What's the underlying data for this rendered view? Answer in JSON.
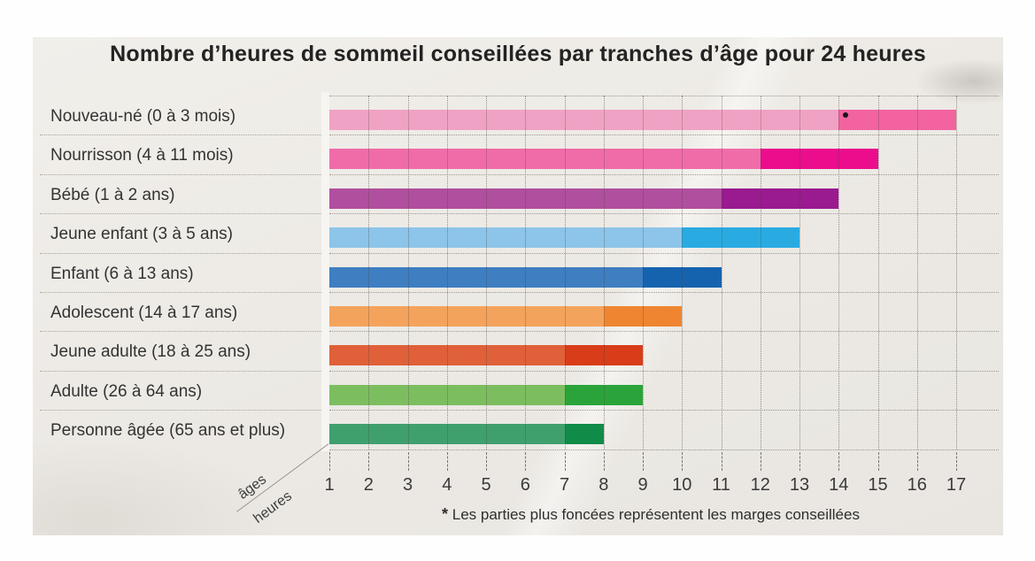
{
  "title": "Nombre d’heures de sommeil conseillées par tranches d’âge pour 24 heures",
  "axis": {
    "ages_label": "âges",
    "heures_label": "heures"
  },
  "footnote": {
    "marker": "*",
    "text": "Les parties plus foncées représentent les marges conseillées"
  },
  "chart_data": {
    "type": "bar",
    "orientation": "horizontal",
    "title": "Nombre d’heures de sommeil conseillées par tranches d’âge pour 24 heures",
    "x_axis_label": "heures",
    "y_axis_label": "âges",
    "x_ticks": [
      1,
      2,
      3,
      4,
      5,
      6,
      7,
      8,
      9,
      10,
      11,
      12,
      13,
      14,
      15,
      16,
      17
    ],
    "xlim": [
      1,
      18
    ],
    "grid": true,
    "legend_note": "Les parties plus foncées représentent les marges conseillées",
    "rows": [
      {
        "label": "Nouveau-né (0 à 3 mois)",
        "bar_end_hours": 17,
        "recommended_range_hours": [
          14,
          17
        ],
        "color_light": "#f0a2c4",
        "color_dark": "#f2639f",
        "asterisk": true
      },
      {
        "label": "Nourrisson (4 à 11 mois)",
        "bar_end_hours": 15,
        "recommended_range_hours": [
          12,
          15
        ],
        "color_light": "#f06ca9",
        "color_dark": "#eb0d8c",
        "asterisk": false
      },
      {
        "label": "Bébé (1 à 2 ans)",
        "bar_end_hours": 14,
        "recommended_range_hours": [
          11,
          14
        ],
        "color_light": "#b04f9e",
        "color_dark": "#9a1a90",
        "asterisk": false
      },
      {
        "label": "Jeune enfant (3 à 5 ans)",
        "bar_end_hours": 13,
        "recommended_range_hours": [
          10,
          13
        ],
        "color_light": "#8dc4e9",
        "color_dark": "#29abe2",
        "asterisk": false
      },
      {
        "label": "Enfant (6 à 13 ans)",
        "bar_end_hours": 11,
        "recommended_range_hours": [
          9,
          11
        ],
        "color_light": "#3e7ec1",
        "color_dark": "#1563ae",
        "asterisk": false
      },
      {
        "label": "Adolescent (14 à 17 ans)",
        "bar_end_hours": 10,
        "recommended_range_hours": [
          8,
          10
        ],
        "color_light": "#f4a35c",
        "color_dark": "#ef8530",
        "asterisk": false
      },
      {
        "label": "Jeune adulte (18 à 25 ans)",
        "bar_end_hours": 9,
        "recommended_range_hours": [
          7,
          9
        ],
        "color_light": "#e06039",
        "color_dark": "#d83c18",
        "asterisk": false
      },
      {
        "label": "Adulte (26 à 64 ans)",
        "bar_end_hours": 9,
        "recommended_range_hours": [
          7,
          9
        ],
        "color_light": "#7cbe5f",
        "color_dark": "#2aa43a",
        "asterisk": false
      },
      {
        "label": "Personne âgée (65 ans et plus)",
        "bar_end_hours": 8,
        "recommended_range_hours": [
          7,
          8
        ],
        "color_light": "#3fa06d",
        "color_dark": "#108c48",
        "asterisk": false
      }
    ]
  }
}
